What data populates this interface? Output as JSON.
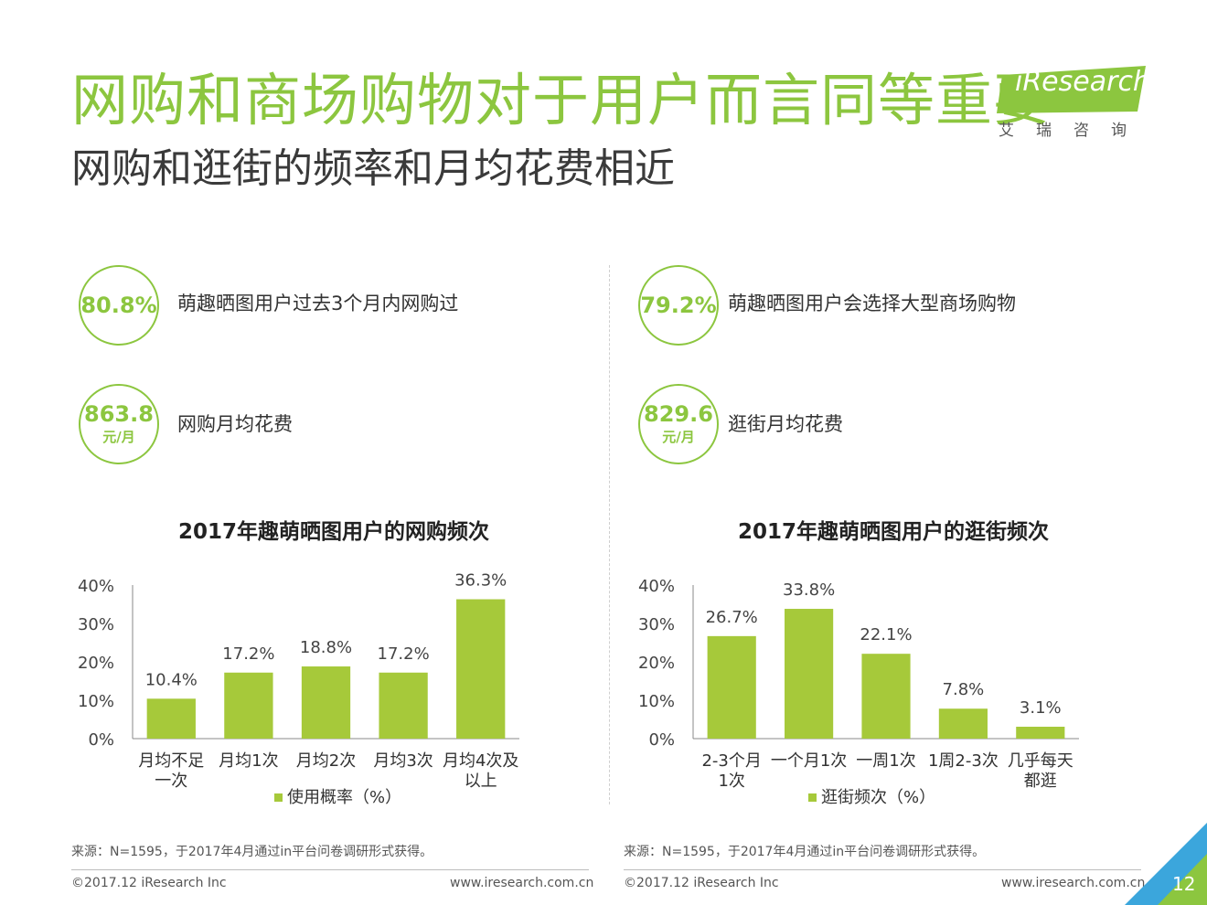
{
  "header": {
    "title": "网购和商场购物对于用户而言同等重要",
    "subtitle": "网购和逛街的频率和月均花费相近"
  },
  "logo": {
    "brand": "iResearch",
    "brand_cn": "艾瑞咨询"
  },
  "stats": {
    "left": [
      {
        "value": "80.8%",
        "unit": "",
        "label": "萌趣晒图用户过去3个月内网购过"
      },
      {
        "value": "863.8",
        "unit": "元/月",
        "label": "网购月均花费"
      }
    ],
    "right": [
      {
        "value": "79.2%",
        "unit": "",
        "label": "萌趣晒图用户会选择大型商场购物"
      },
      {
        "value": "829.6",
        "unit": "元/月",
        "label": "逛街月均花费"
      }
    ]
  },
  "chart_data": [
    {
      "type": "bar",
      "title": "2017年趣萌晒图用户的网购频次",
      "categories": [
        "月均不足\n一次",
        "月均1次",
        "月均2次",
        "月均3次",
        "月均4次及\n以上"
      ],
      "series": [
        {
          "name": "使用概率（%）",
          "values": [
            10.4,
            17.2,
            18.8,
            17.2,
            36.3
          ]
        }
      ],
      "value_labels": [
        "10.4%",
        "17.2%",
        "18.8%",
        "17.2%",
        "36.3%"
      ],
      "yticks": [
        "0%",
        "10%",
        "20%",
        "30%",
        "40%"
      ],
      "ylim": [
        0,
        40
      ],
      "xlabel": "",
      "ylabel": "",
      "legend": "bottom",
      "grid": false,
      "color": "#a6c93a"
    },
    {
      "type": "bar",
      "title": "2017年趣萌晒图用户的逛街频次",
      "categories": [
        "2-3个月\n1次",
        "一个月1次",
        "一周1次",
        "1周2-3次",
        "几乎每天\n都逛"
      ],
      "series": [
        {
          "name": "逛街频次（%）",
          "values": [
            26.7,
            33.8,
            22.1,
            7.8,
            3.1
          ]
        }
      ],
      "value_labels": [
        "26.7%",
        "33.8%",
        "22.1%",
        "7.8%",
        "3.1%"
      ],
      "yticks": [
        "0%",
        "10%",
        "20%",
        "30%",
        "40%"
      ],
      "ylim": [
        0,
        40
      ],
      "xlabel": "",
      "ylabel": "",
      "legend": "bottom",
      "grid": false,
      "color": "#a6c93a"
    }
  ],
  "footer": {
    "source": "来源：N=1595，于2017年4月通过in平台问卷调研形式获得。",
    "copyright": "©2017.12 iResearch Inc",
    "website": "www.iresearch.com.cn",
    "page": "12"
  },
  "colors": {
    "accent": "#8cc63f",
    "bar": "#a6c93a",
    "corner_blue": "#3ba6dc"
  }
}
